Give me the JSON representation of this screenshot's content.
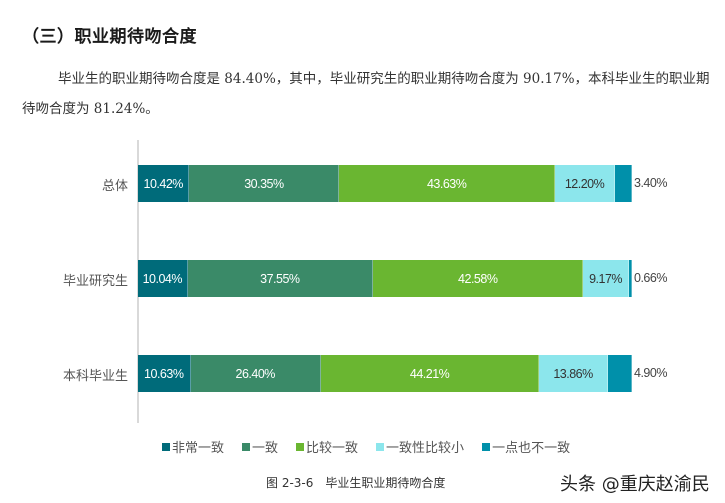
{
  "heading": "（三）职业期待吻合度",
  "paragraph": "毕业生的职业期待吻合度是 84.40%，其中，毕业研究生的职业期待吻合度为 90.17%，本科毕业生的职业期待吻合度为 81.24%。",
  "chart_data": {
    "type": "bar",
    "orientation": "horizontal",
    "stacked": true,
    "percent_stacked": true,
    "title": "",
    "caption": "图 2-3-6　毕业生职业期待吻合度",
    "xlabel": "",
    "ylabel": "",
    "xlim": [
      0,
      100
    ],
    "grid": false,
    "legend_position": "bottom",
    "categories": [
      "总体",
      "毕业研究生",
      "本科毕业生"
    ],
    "series": [
      {
        "name": "非常一致",
        "color": "#006b7a",
        "values": [
          10.42,
          10.04,
          10.63
        ],
        "labels": [
          "10.42%",
          "10.04%",
          "10.63%"
        ]
      },
      {
        "name": "一致",
        "color": "#3a8a68",
        "values": [
          30.35,
          37.55,
          26.4
        ],
        "labels": [
          "30.35%",
          "37.55%",
          "26.40%"
        ]
      },
      {
        "name": "比较一致",
        "color": "#6ab631",
        "values": [
          43.63,
          42.58,
          44.21
        ],
        "labels": [
          "43.63%",
          "42.58%",
          "44.21%"
        ]
      },
      {
        "name": "一致性比较小",
        "color": "#8ce6ec",
        "values": [
          12.2,
          9.17,
          13.86
        ],
        "labels": [
          "12.20%",
          "9.17%",
          "13.86%"
        ]
      },
      {
        "name": "一点也不一致",
        "color": "#0090aa",
        "values": [
          3.4,
          0.66,
          4.9
        ],
        "labels": [
          "3.40%",
          "0.66%",
          "4.90%"
        ]
      }
    ]
  },
  "watermark": "头条 @重庆赵渝民"
}
